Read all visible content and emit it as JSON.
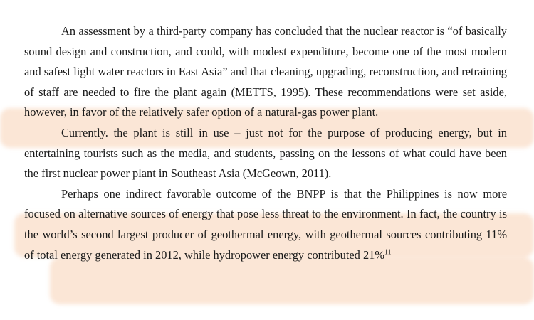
{
  "document": {
    "paragraphs": [
      {
        "text": "An assessment by a third-party company has concluded that the nuclear reactor is “of basically sound design and construction, and could, with modest expenditure, become one of the most modern and safest light water reactors in East Asia” and that cleaning, upgrading, reconstruction, and retraining of staff are needed to fire the plant again (METTS, 1995). These recommendations were set aside, however, in favor of the relatively safer option of a natural-gas power plant."
      },
      {
        "text": "Currently. the plant is still in use – just not for the purpose of producing energy, but in entertaining tourists such as the media, and students, passing on the lessons of what could have been the first nuclear power plant in Southeast Asia (McGeown, 2011)."
      },
      {
        "text": "Perhaps one indirect favorable outcome of the BNPP is that the Philippines is now more focused on alternative sources of energy that pose less threat to the environment. In fact, the country is the world’s second largest producer of geothermal energy, with geothermal sources contributing 11% of total energy generated in 2012, while hydropower energy contributed 21%",
        "footnote": "11"
      }
    ]
  },
  "highlight_color": "#f4b282"
}
